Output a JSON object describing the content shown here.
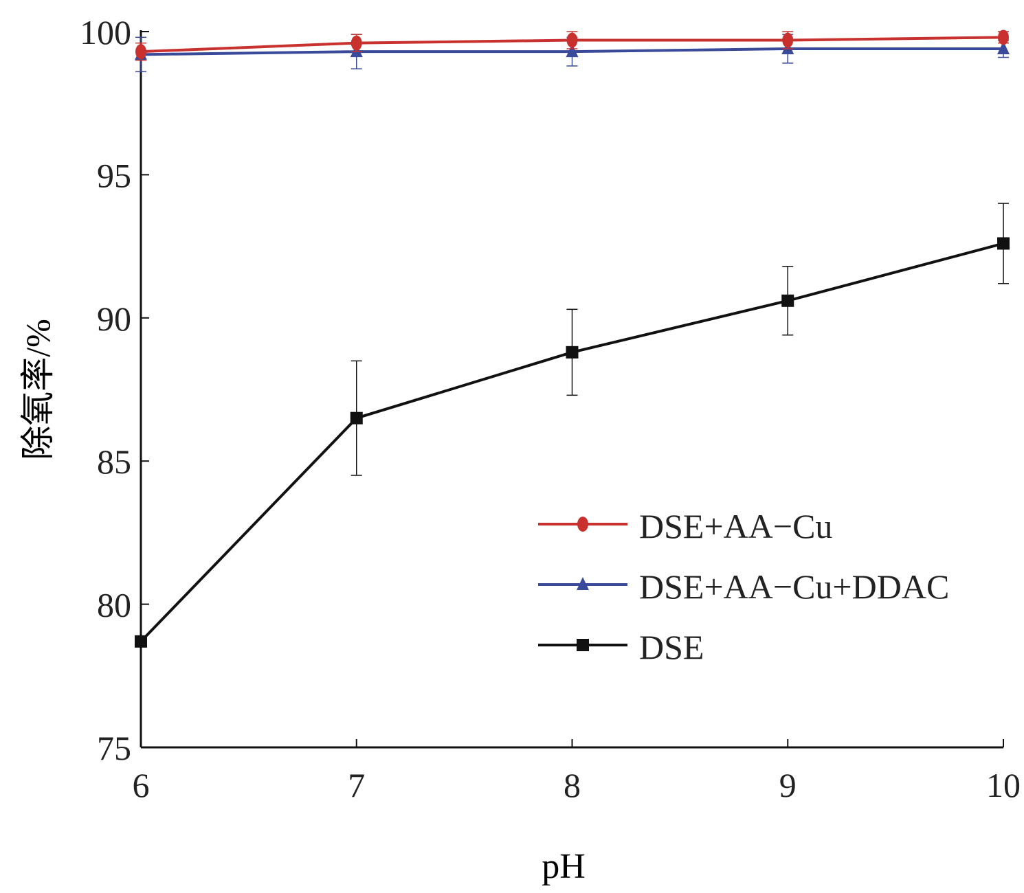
{
  "chart_data": {
    "type": "line",
    "title": "",
    "xlabel": "pH",
    "ylabel": "除氧率/%",
    "x": [
      6,
      7,
      8,
      9,
      10
    ],
    "xticks": [
      "6",
      "7",
      "8",
      "9",
      "10"
    ],
    "yticks": [
      "75",
      "80",
      "85",
      "90",
      "95",
      "100"
    ],
    "xlim": [
      6,
      10
    ],
    "ylim": [
      75,
      100
    ],
    "grid": false,
    "legend_position": "lower-right",
    "series": [
      {
        "name": "DSE+AA−Cu",
        "color": "#c8312e",
        "marker": "circle",
        "values": [
          99.3,
          99.6,
          99.7,
          99.7,
          99.8
        ],
        "errors": [
          0.3,
          0.3,
          0.3,
          0.3,
          0.2
        ]
      },
      {
        "name": "DSE+AA−Cu+DDAC",
        "color": "#3a4a9a",
        "marker": "triangle",
        "values": [
          99.2,
          99.3,
          99.3,
          99.4,
          99.4
        ],
        "errors": [
          0.6,
          0.6,
          0.5,
          0.5,
          0.3
        ]
      },
      {
        "name": "DSE",
        "color": "#111111",
        "marker": "square",
        "values": [
          78.7,
          86.5,
          88.8,
          90.6,
          92.6
        ],
        "errors": [
          0.0,
          2.0,
          1.5,
          1.2,
          1.4
        ]
      }
    ]
  }
}
